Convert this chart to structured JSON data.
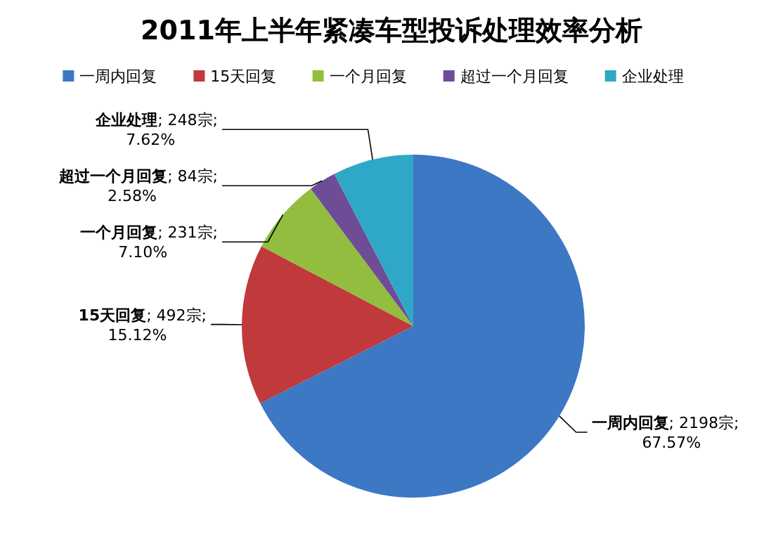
{
  "chart_data": {
    "type": "pie",
    "title": "2011年上半年紧凑车型投诉处理效率分析",
    "categories": [
      "一周内回复",
      "15天回复",
      "一个月回复",
      "超过一个月回复",
      "企业处理"
    ],
    "values": [
      2198,
      492,
      231,
      84,
      248
    ],
    "value_labels": [
      "一周内回复; 2198宗; 67.57%",
      "15天回复; 492宗; 15.12%",
      "一个月回复; 231宗; 7.10%",
      "超过一个月回复; 84宗; 2.58%",
      "企业处理; 248宗; 7.62%"
    ],
    "colors": [
      "#3c78c4",
      "#c0393b",
      "#92bd3f",
      "#6e4c96",
      "#2fa8c8"
    ],
    "legend": "top"
  }
}
